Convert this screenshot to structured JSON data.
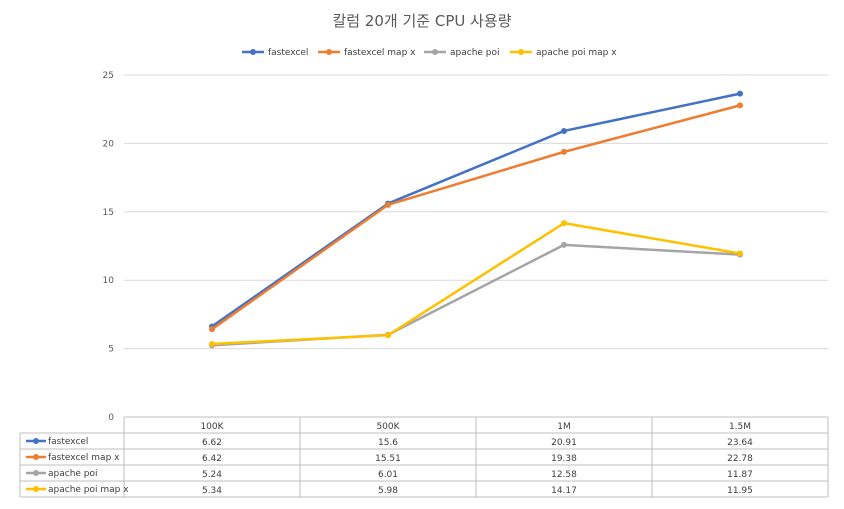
{
  "chart_data": {
    "type": "line",
    "title": "칼럼 20개 기준 CPU 사용량",
    "categories": [
      "100K",
      "500K",
      "1M",
      "1.5M"
    ],
    "ylim": [
      0,
      25
    ],
    "yticks": [
      0,
      5,
      10,
      15,
      20,
      25
    ],
    "grid": true,
    "legend": "top",
    "data_table": true,
    "series": [
      {
        "name": "fastexcel",
        "color": "#4472C4",
        "values": [
          6.62,
          15.6,
          20.91,
          23.64
        ]
      },
      {
        "name": "fastexcel map x",
        "color": "#ED7D31",
        "values": [
          6.42,
          15.51,
          19.38,
          22.78
        ]
      },
      {
        "name": "apache poi",
        "color": "#A5A5A5",
        "values": [
          5.24,
          6.01,
          12.58,
          11.87
        ]
      },
      {
        "name": "apache poi map x",
        "color": "#FFC000",
        "values": [
          5.34,
          5.98,
          14.17,
          11.95
        ]
      }
    ]
  }
}
